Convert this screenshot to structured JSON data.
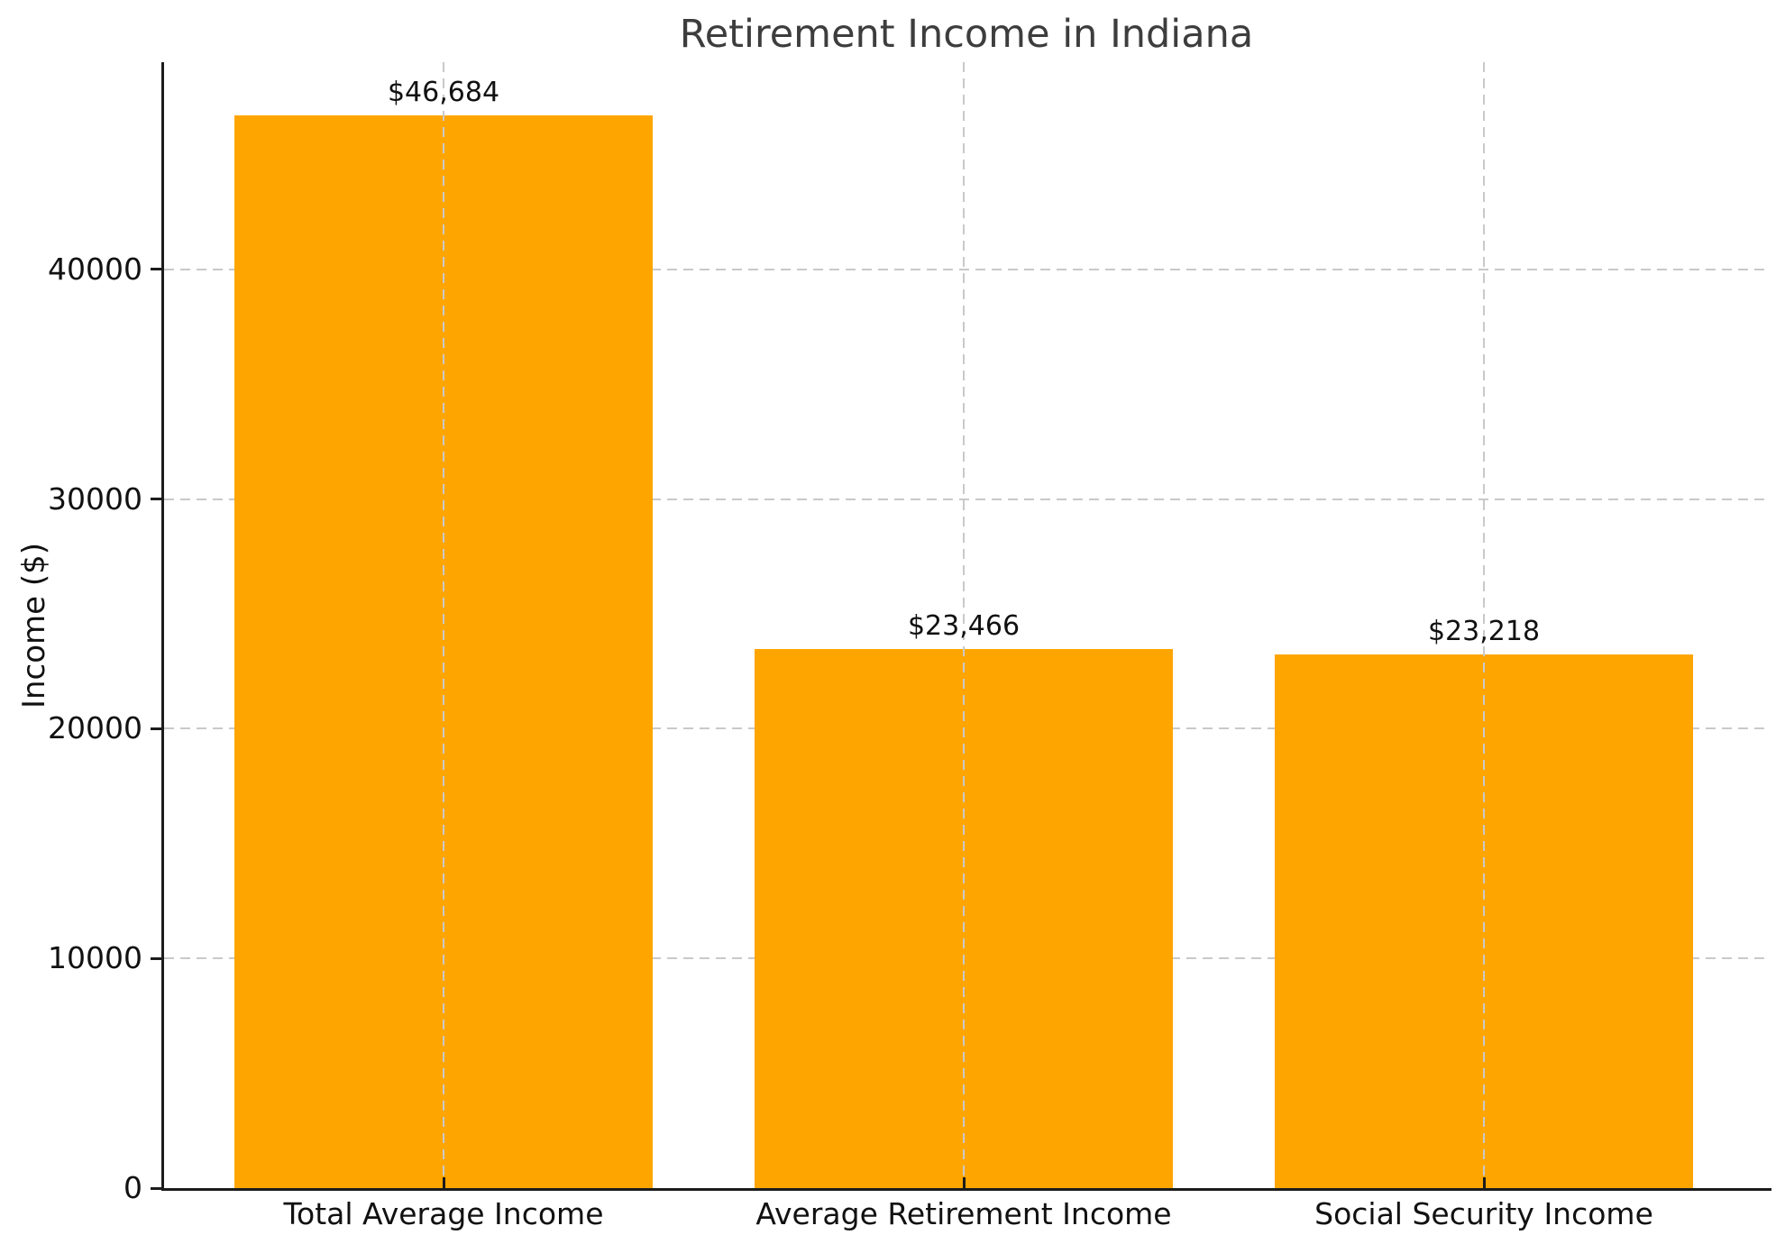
{
  "chart_data": {
    "type": "bar",
    "title": "Retirement Income in Indiana",
    "xlabel": "",
    "ylabel": "Income ($)",
    "categories": [
      "Total Average Income",
      "Average Retirement Income",
      "Social Security Income"
    ],
    "values": [
      46684,
      23466,
      23218
    ],
    "value_labels": [
      "$46,684",
      "$23,466",
      "$23,218"
    ],
    "ylim": [
      0,
      49018
    ],
    "yticks": [
      0,
      10000,
      20000,
      30000,
      40000
    ],
    "ytick_labels": [
      "0",
      "10000",
      "20000",
      "30000",
      "40000"
    ],
    "bar_color": "#ffa500",
    "grid": "dashed",
    "grid_color": "#c9c9c9",
    "legend": "none"
  }
}
